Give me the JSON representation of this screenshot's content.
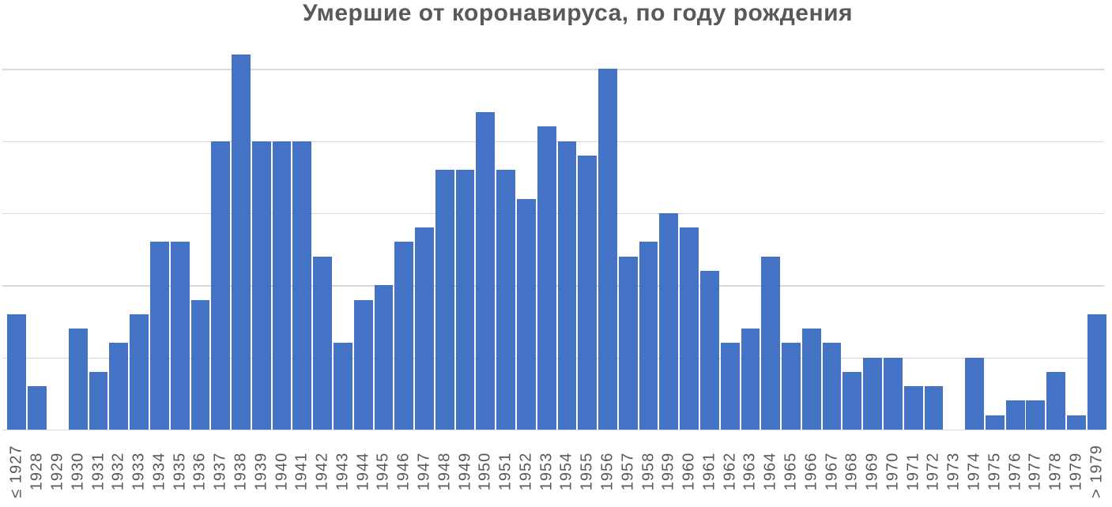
{
  "chart_data": {
    "type": "bar",
    "title": "Умершие от коронавируса, по году рождения",
    "categories": [
      "≤ 1927",
      "1928",
      "1929",
      "1930",
      "1931",
      "1932",
      "1933",
      "1934",
      "1935",
      "1936",
      "1937",
      "1938",
      "1939",
      "1940",
      "1941",
      "1942",
      "1943",
      "1944",
      "1945",
      "1946",
      "1947",
      "1948",
      "1949",
      "1950",
      "1951",
      "1952",
      "1953",
      "1954",
      "1955",
      "1956",
      "1957",
      "1958",
      "1959",
      "1960",
      "1961",
      "1962",
      "1963",
      "1964",
      "1965",
      "1966",
      "1967",
      "1968",
      "1969",
      "1970",
      "1971",
      "1972",
      "1973",
      "1974",
      "1975",
      "1976",
      "1977",
      "1978",
      "1979",
      "> 1979"
    ],
    "values": [
      8,
      3,
      0,
      7,
      4,
      6,
      8,
      13,
      13,
      9,
      20,
      26,
      20,
      20,
      20,
      12,
      6,
      9,
      10,
      13,
      14,
      18,
      18,
      22,
      18,
      16,
      21,
      20,
      19,
      25,
      12,
      13,
      15,
      14,
      11,
      6,
      7,
      12,
      6,
      7,
      6,
      4,
      5,
      5,
      3,
      3,
      0,
      5,
      1,
      2,
      2,
      4,
      1,
      8
    ],
    "xlabel": "",
    "ylabel": "",
    "ylim": [
      0,
      26.5
    ],
    "gridline_interval": 5,
    "grid": "horizontal",
    "legend": "none",
    "y_axis_labels_visible": false,
    "x_labels_rotation_deg": 90,
    "colors": {
      "bar": "#4472C4",
      "gridline": "#D9D9D9",
      "axis_line": "#D9D9D9",
      "title": "#595959",
      "axis_labels": "#595959",
      "background": "#FFFFFF"
    }
  }
}
